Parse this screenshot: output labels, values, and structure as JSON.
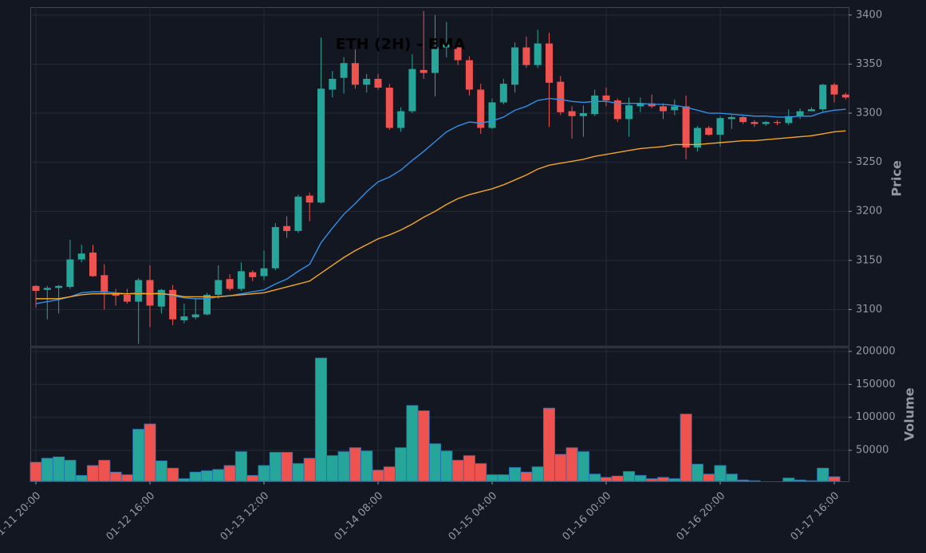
{
  "chart_data": {
    "type": "candlestick",
    "title": "ETH (2H) - EMA",
    "ylabel": "Price",
    "y2label": "Volume",
    "categories": [
      "01-11 20:00",
      null,
      null,
      null,
      null,
      null,
      null,
      null,
      null,
      null,
      "01-12 16:00",
      null,
      null,
      null,
      null,
      null,
      null,
      null,
      null,
      null,
      "01-13 12:00",
      null,
      null,
      null,
      null,
      null,
      null,
      null,
      null,
      null,
      "01-14 08:00",
      null,
      null,
      null,
      null,
      null,
      null,
      null,
      null,
      null,
      "01-15 04:00",
      null,
      null,
      null,
      null,
      null,
      null,
      null,
      null,
      null,
      "01-16 00:00",
      null,
      null,
      null,
      null,
      null,
      null,
      null,
      null,
      null,
      "01-16 20:00",
      null,
      null,
      null,
      null,
      null,
      null,
      null,
      null,
      null,
      "01-17 16:00",
      null
    ],
    "open": [
      3124,
      3120,
      3122,
      3123,
      3151,
      3158,
      3135,
      3117,
      3115,
      3108,
      3130,
      3103,
      3120,
      3089,
      3092,
      3095,
      3115,
      3131,
      3121,
      3138,
      3134,
      3142,
      3185,
      3180,
      3216,
      3209,
      3324,
      3336,
      3351,
      3329,
      3335,
      3326,
      3285,
      3302,
      3344,
      3341,
      3367,
      3367,
      3354,
      3324,
      3285,
      3311,
      3329,
      3367,
      3349,
      3371,
      3332,
      3302,
      3297,
      3299,
      3318,
      3313,
      3294,
      3307,
      3310,
      3307,
      3303,
      3307,
      3265,
      3285,
      3278,
      3294,
      3296,
      3291,
      3289,
      3291,
      3290,
      3297,
      3302,
      3304,
      3329,
      3319
    ],
    "high": [
      3125,
      3124,
      3125,
      3171,
      3166,
      3166,
      3146,
      3121,
      3121,
      3132,
      3145,
      3121,
      3125,
      3106,
      3111,
      3117,
      3145,
      3136,
      3148,
      3140,
      3160,
      3188,
      3195,
      3217,
      3219,
      3377,
      3343,
      3357,
      3365,
      3340,
      3340,
      3330,
      3306,
      3360,
      3404,
      3400,
      3393,
      3372,
      3358,
      3330,
      3315,
      3335,
      3372,
      3378,
      3385,
      3382,
      3338,
      3307,
      3308,
      3324,
      3326,
      3315,
      3316,
      3316,
      3319,
      3310,
      3314,
      3318,
      3287,
      3287,
      3297,
      3298,
      3297,
      3293,
      3292,
      3293,
      3304,
      3305,
      3306,
      3330,
      3331,
      3321
    ],
    "low": [
      3102,
      3090,
      3096,
      3121,
      3148,
      3133,
      3100,
      3104,
      3106,
      3065,
      3082,
      3096,
      3084,
      3086,
      3090,
      3094,
      3111,
      3119,
      3119,
      3129,
      3130,
      3140,
      3173,
      3178,
      3190,
      3208,
      3316,
      3320,
      3325,
      3321,
      3324,
      3283,
      3281,
      3300,
      3335,
      3317,
      3357,
      3349,
      3318,
      3279,
      3284,
      3309,
      3321,
      3346,
      3346,
      3286,
      3298,
      3274,
      3276,
      3297,
      3307,
      3291,
      3276,
      3301,
      3305,
      3294,
      3298,
      3253,
      3261,
      3277,
      3266,
      3284,
      3289,
      3286,
      3287,
      3288,
      3288,
      3294,
      3302,
      3302,
      3311,
      3314
    ],
    "close": [
      3119,
      3122,
      3124,
      3151,
      3157,
      3134,
      3117,
      3114,
      3108,
      3130,
      3104,
      3120,
      3090,
      3093,
      3095,
      3115,
      3130,
      3121,
      3139,
      3133,
      3142,
      3184,
      3180,
      3215,
      3209,
      3325,
      3335,
      3351,
      3329,
      3335,
      3326,
      3285,
      3302,
      3345,
      3341,
      3367,
      3370,
      3354,
      3324,
      3285,
      3311,
      3330,
      3367,
      3349,
      3371,
      3331,
      3301,
      3297,
      3300,
      3318,
      3313,
      3294,
      3308,
      3310,
      3307,
      3302,
      3307,
      3265,
      3285,
      3278,
      3295,
      3296,
      3291,
      3289,
      3291,
      3290,
      3297,
      3302,
      3304,
      3329,
      3319,
      3316
    ],
    "volume": [
      32000,
      38000,
      40000,
      35000,
      12000,
      27000,
      35000,
      17000,
      13000,
      82000,
      90000,
      34000,
      23000,
      7000,
      17000,
      19000,
      21000,
      27000,
      48000,
      12000,
      27000,
      47000,
      47000,
      30000,
      38000,
      190000,
      42000,
      48000,
      54000,
      49000,
      20000,
      25000,
      54000,
      118000,
      110000,
      60000,
      49000,
      35000,
      42000,
      30000,
      13000,
      13000,
      24000,
      17000,
      25000,
      114000,
      44000,
      54000,
      48000,
      14000,
      9000,
      11000,
      18000,
      12000,
      7000,
      9000,
      7000,
      105000,
      29000,
      14000,
      27000,
      14000,
      5000,
      4000,
      2000,
      3000,
      8000,
      5000,
      4000,
      23000,
      10000,
      2000
    ],
    "lines": [
      {
        "color": "#2f8fe8",
        "values": [
          3106,
          3108,
          3110,
          3113,
          3117,
          3118,
          3118,
          3117,
          3116,
          3117,
          3116,
          3117,
          3114,
          3112,
          3111,
          3111,
          3113,
          3114,
          3116,
          3118,
          3120,
          3126,
          3131,
          3139,
          3146,
          3168,
          3183,
          3197,
          3208,
          3220,
          3230,
          3235,
          3242,
          3252,
          3261,
          3271,
          3281,
          3287,
          3291,
          3290,
          3292,
          3296,
          3303,
          3307,
          3313,
          3315,
          3314,
          3312,
          3311,
          3312,
          3312,
          3310,
          3310,
          3310,
          3309,
          3309,
          3308,
          3306,
          3303,
          3300,
          3300,
          3299,
          3298,
          3297,
          3297,
          3296,
          3296,
          3297,
          3297,
          3301,
          3303,
          3304
        ]
      },
      {
        "color": "#f5a623",
        "values": [
          3111,
          3111,
          3111,
          3113,
          3115,
          3116,
          3116,
          3116,
          3116,
          3116,
          3116,
          3116,
          3115,
          3113,
          3113,
          3113,
          3113,
          3114,
          3115,
          3116,
          3117,
          3120,
          3123,
          3126,
          3129,
          3137,
          3145,
          3153,
          3160,
          3166,
          3172,
          3176,
          3181,
          3187,
          3194,
          3200,
          3207,
          3213,
          3217,
          3220,
          3223,
          3227,
          3232,
          3237,
          3243,
          3247,
          3249,
          3251,
          3253,
          3256,
          3258,
          3260,
          3262,
          3264,
          3265,
          3266,
          3268,
          3268,
          3268,
          3269,
          3270,
          3271,
          3272,
          3272,
          3273,
          3274,
          3275,
          3276,
          3277,
          3279,
          3281,
          3282
        ]
      }
    ],
    "up_color": "#26a69a",
    "down_color": "#ef5350",
    "ylim": [
      3063,
      3408
    ],
    "yticks": [
      3100,
      3150,
      3200,
      3250,
      3300,
      3350,
      3400
    ],
    "y2lim": [
      3000,
      206000
    ],
    "y2ticks": [
      50000,
      100000,
      150000,
      200000
    ],
    "grid": true
  }
}
